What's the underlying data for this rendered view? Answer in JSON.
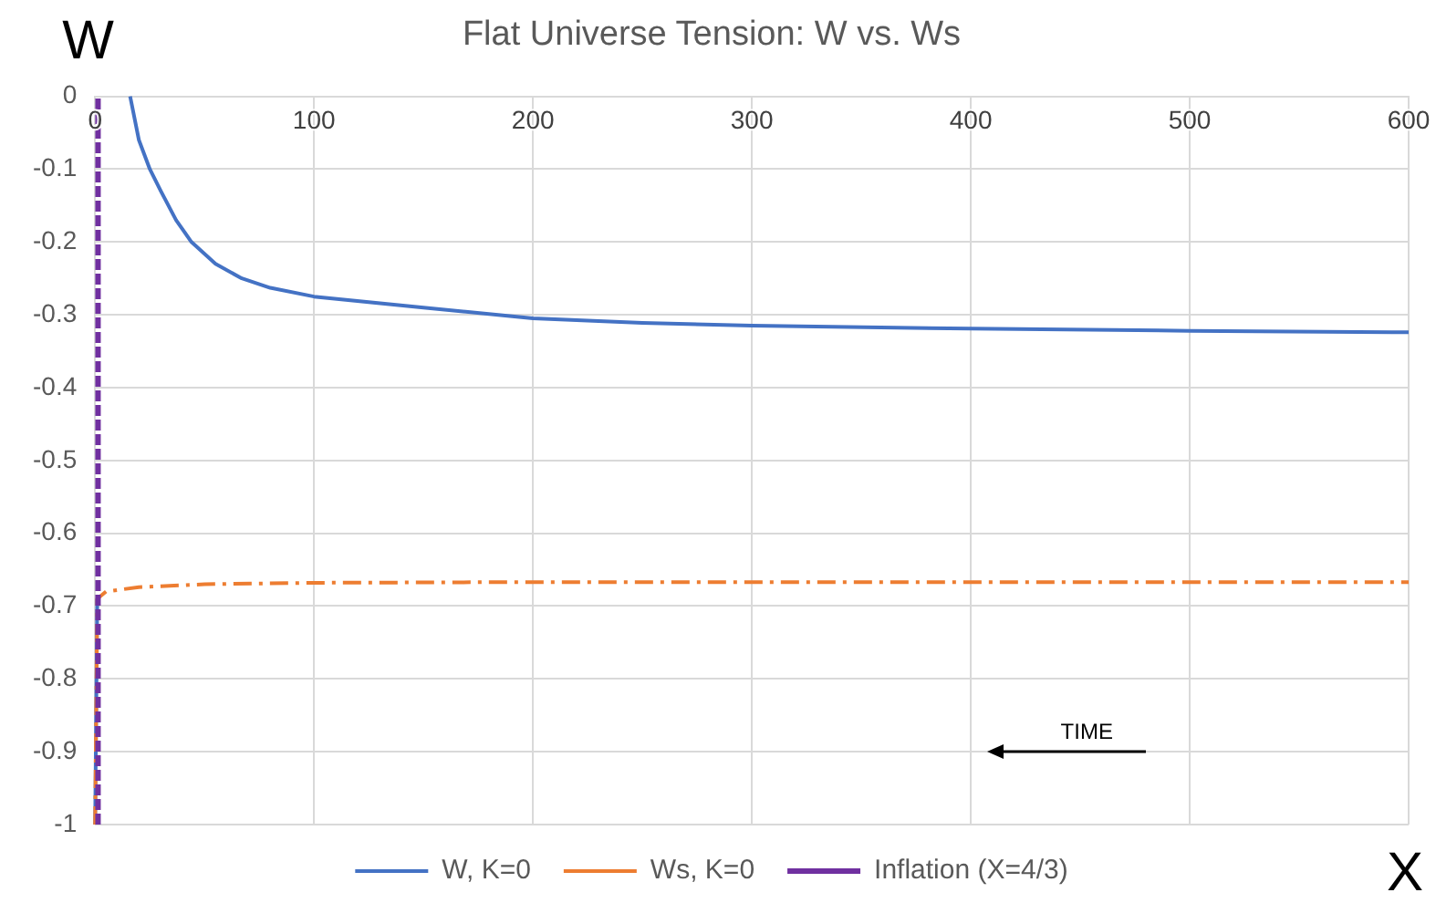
{
  "chart_data": {
    "type": "line",
    "title": "Flat Universe Tension: W vs. Ws",
    "xlabel": "X",
    "ylabel": "W",
    "xlim": [
      0,
      600
    ],
    "xticks": [
      0,
      100,
      200,
      300,
      400,
      500,
      600
    ],
    "ylim": [
      -1,
      0
    ],
    "yticks": [
      -1,
      -0.9,
      -0.8,
      -0.7,
      -0.6,
      -0.5,
      -0.4,
      -0.3,
      -0.2,
      -0.1,
      0
    ],
    "grid": true,
    "legend": "bottom",
    "marker": "none",
    "series": [
      {
        "name": "W, K=0",
        "color": "#4472c4",
        "line_style": "solid",
        "x": [
          0,
          1,
          2,
          16,
          20,
          25,
          30,
          37,
          44,
          55,
          67,
          80,
          100,
          150,
          200,
          250,
          300,
          400,
          500,
          600
        ],
        "values": [
          -1,
          -0.69,
          null,
          0,
          -0.06,
          -0.1,
          -0.13,
          -0.17,
          -0.2,
          -0.23,
          -0.25,
          -0.263,
          -0.275,
          -0.29,
          -0.305,
          -0.311,
          -0.315,
          -0.319,
          -0.322,
          -0.324
        ]
      },
      {
        "name": "Ws, K=0",
        "color": "#ed7d31",
        "line_style": "dashdot",
        "x": [
          0,
          1,
          5,
          20,
          50,
          100,
          200,
          300,
          400,
          500,
          600
        ],
        "values": [
          -1,
          -0.69,
          -0.68,
          -0.674,
          -0.67,
          -0.668,
          -0.667,
          -0.667,
          -0.667,
          -0.667,
          -0.667
        ]
      },
      {
        "name": "Inflation (X=4/3)",
        "color": "#7030a0",
        "line_style": "dashed",
        "x": [
          1.333,
          1.333,
          1.333
        ],
        "values": [
          -1,
          -0.5,
          0
        ]
      }
    ],
    "annotations": [
      "TIME"
    ]
  }
}
